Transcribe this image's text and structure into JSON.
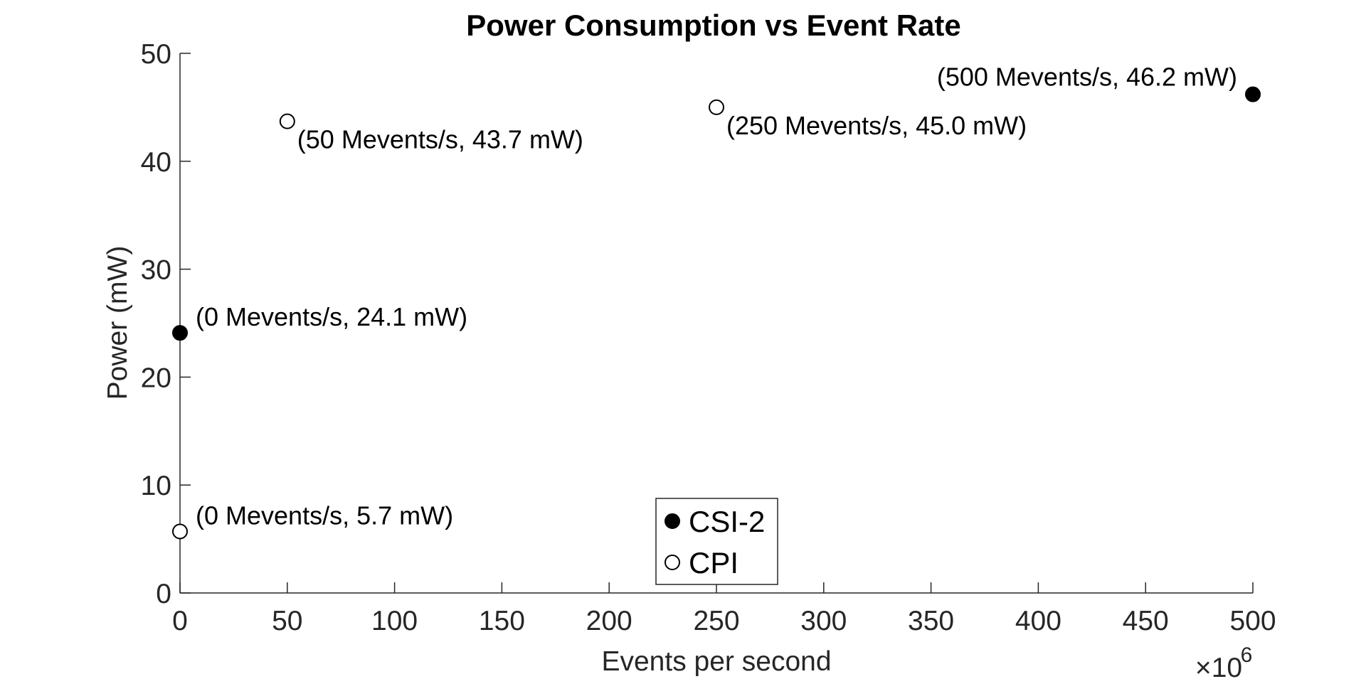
{
  "chart_data": {
    "type": "scatter",
    "title": "Power Consumption vs Event Rate",
    "xlabel": "Events per second",
    "ylabel": "Power (mW)",
    "x_exponent_label": "×10",
    "x_exponent_power": "6",
    "xlim": [
      0,
      500
    ],
    "ylim": [
      0,
      50
    ],
    "x_ticks": [
      0,
      50,
      100,
      150,
      200,
      250,
      300,
      350,
      400,
      450,
      500
    ],
    "y_ticks": [
      0,
      10,
      20,
      30,
      40,
      50
    ],
    "grid": false,
    "legend_position": "bottom-center",
    "series": [
      {
        "name": "CSI-2",
        "marker": "filled-circle",
        "color": "#000000",
        "points": [
          {
            "x": 0,
            "y": 24.1,
            "label": "(0 Mevents/s, 24.1 mW)",
            "label_side": "right"
          },
          {
            "x": 500,
            "y": 46.2,
            "label": "(500 Mevents/s, 46.2 mW)",
            "label_side": "left"
          }
        ]
      },
      {
        "name": "CPI",
        "marker": "open-circle",
        "color": "#000000",
        "points": [
          {
            "x": 0,
            "y": 5.7,
            "label": "(0 Mevents/s, 5.7 mW)",
            "label_side": "right"
          },
          {
            "x": 50,
            "y": 43.7,
            "label": "(50 Mevents/s, 43.7 mW)",
            "label_side": "below-right"
          },
          {
            "x": 250,
            "y": 45.0,
            "label": "(250 Mevents/s, 45.0 mW)",
            "label_side": "below-right"
          }
        ]
      }
    ]
  }
}
